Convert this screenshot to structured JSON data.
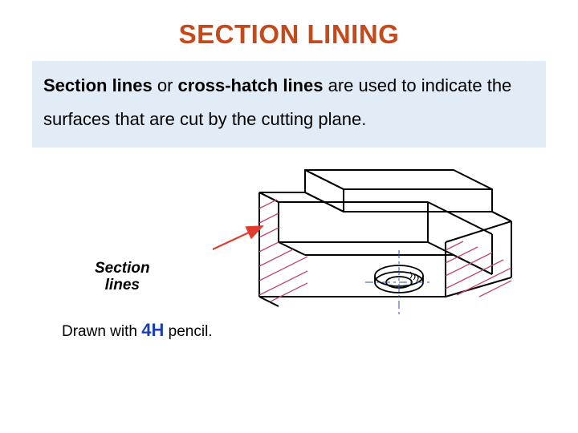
{
  "title": {
    "text": "SECTION  LINING",
    "color": "#c44a1c"
  },
  "description": {
    "bg": "#e2ecf6",
    "parts": [
      {
        "text": "Section lines",
        "bold": true
      },
      {
        "text": " or "
      },
      {
        "text": "cross-hatch lines",
        "bold": true
      },
      {
        "text": " are used to indicate the surfaces that are cut by the cutting plane."
      }
    ]
  },
  "labels": {
    "section_line1": "Section",
    "section_line2": "lines",
    "drawn_prefix": "Drawn with ",
    "drawn_emph": "4H",
    "drawn_suffix": " pencil.",
    "emph_color": "#1a3fb0"
  },
  "diagram": {
    "stroke": "#000000",
    "hatch_color": "#c44a7a",
    "arrow_color": "#e23b2e",
    "center_color": "#2a4db5"
  }
}
